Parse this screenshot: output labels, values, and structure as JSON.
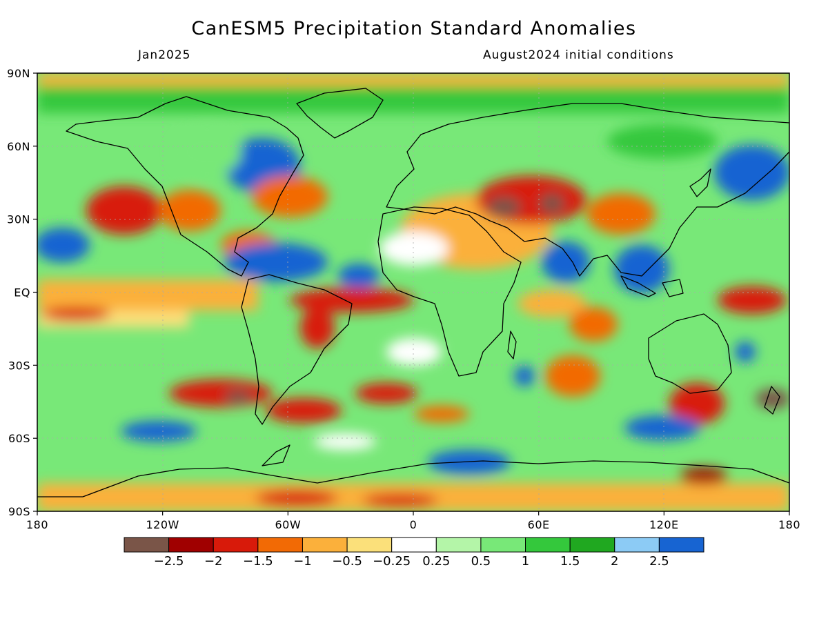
{
  "title": "CanESM5 Precipitation Standard Anomalies",
  "subtitle_left": "Jan2025",
  "subtitle_right": "August2024 initial conditions",
  "map": {
    "lon_range": [
      -180,
      180
    ],
    "lat_range": [
      -90,
      90
    ],
    "x_ticks": [
      {
        "value": -180,
        "label": "180"
      },
      {
        "value": -120,
        "label": "120W"
      },
      {
        "value": -60,
        "label": "60W"
      },
      {
        "value": 0,
        "label": "0"
      },
      {
        "value": 60,
        "label": "60E"
      },
      {
        "value": 120,
        "label": "120E"
      },
      {
        "value": 180,
        "label": "180"
      }
    ],
    "y_ticks": [
      {
        "value": 90,
        "label": "90N"
      },
      {
        "value": 60,
        "label": "60N"
      },
      {
        "value": 30,
        "label": "30N"
      },
      {
        "value": 0,
        "label": "EQ"
      },
      {
        "value": -30,
        "label": "30S"
      },
      {
        "value": -60,
        "label": "60S"
      },
      {
        "value": -90,
        "label": "90S"
      }
    ],
    "grid": "dotted"
  },
  "colorbar": {
    "colors": [
      "#7a5548",
      "#a00000",
      "#d81a0a",
      "#f26a05",
      "#fbb03b",
      "#fbe07a",
      "#ffffff",
      "#b4f5a8",
      "#78e878",
      "#34c83c",
      "#20a820",
      "#8ccbf5",
      "#1764d2"
    ],
    "labels": [
      "−2.5",
      "−2",
      "−1.5",
      "−1",
      "−0.5",
      "−0.25",
      "0.25",
      "0.5",
      "1",
      "1.5",
      "2",
      "2.5"
    ]
  }
}
